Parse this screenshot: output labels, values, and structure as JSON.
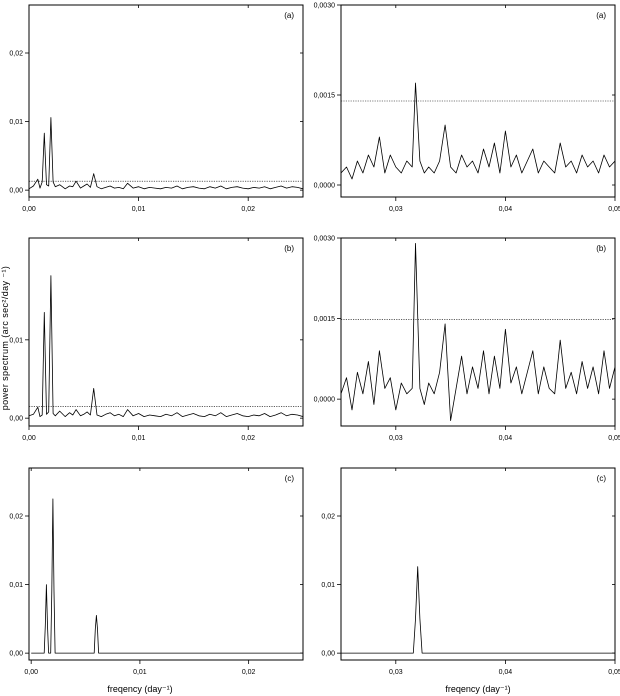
{
  "figure": {
    "ylabel": "power spectrum (arc sec²/day ⁻¹)",
    "xlabel": "freqency (day⁻¹)"
  },
  "chart_data": [
    {
      "type": "line",
      "panel": "(a)",
      "xlim": [
        0,
        0.025
      ],
      "ylim": [
        -0.001,
        0.027
      ],
      "xticks": [
        0.0,
        0.01,
        0.02
      ],
      "xticklabels": [
        "0,00",
        "0,01",
        "0,02"
      ],
      "yticks": [
        0.0,
        0.01,
        0.02
      ],
      "yticklabels": [
        "0,00",
        "0,01",
        "0,02"
      ],
      "threshold": 0.0013,
      "series": [
        {
          "x": [
            0.0,
            0.0004,
            0.0008,
            0.001,
            0.0012,
            0.0014,
            0.0016,
            0.0018,
            0.002,
            0.0022,
            0.0024,
            0.0028,
            0.0033,
            0.0037,
            0.004,
            0.0043,
            0.0047,
            0.005,
            0.0053,
            0.0056,
            0.0059,
            0.0062,
            0.0066,
            0.007,
            0.0074,
            0.0078,
            0.0082,
            0.0086,
            0.009,
            0.0095,
            0.01,
            0.0105,
            0.011,
            0.0115,
            0.012,
            0.0125,
            0.013,
            0.0135,
            0.014,
            0.0145,
            0.015,
            0.0155,
            0.016,
            0.0165,
            0.017,
            0.0175,
            0.018,
            0.0185,
            0.019,
            0.0195,
            0.02,
            0.0205,
            0.021,
            0.0215,
            0.022,
            0.0225,
            0.023,
            0.0235,
            0.024,
            0.0245,
            0.025
          ],
          "y": [
            0.0002,
            0.0006,
            0.0016,
            0.0003,
            0.0012,
            0.0083,
            0.0008,
            0.0006,
            0.0106,
            0.0012,
            0.0005,
            0.0008,
            0.0002,
            0.0006,
            0.0005,
            0.0013,
            0.0003,
            0.0006,
            0.0009,
            0.0004,
            0.0024,
            0.0005,
            0.0002,
            0.0004,
            0.0006,
            0.0003,
            0.0004,
            0.0002,
            0.001,
            0.0003,
            0.0005,
            0.0002,
            0.0004,
            0.0003,
            0.0002,
            0.0004,
            0.0003,
            0.0006,
            0.0002,
            0.0004,
            0.0005,
            0.0003,
            0.0002,
            0.0005,
            0.0003,
            0.0006,
            0.0002,
            0.0004,
            0.0005,
            0.0003,
            0.0002,
            0.0004,
            0.0003,
            0.0005,
            0.0002,
            0.0004,
            0.0006,
            0.0003,
            0.0005,
            0.0004,
            0.0002
          ]
        }
      ]
    },
    {
      "type": "line",
      "panel": "(a)",
      "xlim": [
        0.025,
        0.05
      ],
      "ylim": [
        -0.0002,
        0.003
      ],
      "xticks": [
        0.03,
        0.04,
        0.05
      ],
      "xticklabels": [
        "0,03",
        "0,04",
        "0,05"
      ],
      "yticks": [
        0.0,
        0.0015,
        0.003
      ],
      "yticklabels": [
        "0,0000",
        "0,0015",
        "0,0030"
      ],
      "threshold": 0.0014,
      "series": [
        {
          "x": [
            0.025,
            0.0255,
            0.026,
            0.0265,
            0.027,
            0.0275,
            0.028,
            0.0285,
            0.029,
            0.0295,
            0.03,
            0.0305,
            0.031,
            0.0315,
            0.0318,
            0.0322,
            0.0326,
            0.033,
            0.0335,
            0.034,
            0.0345,
            0.035,
            0.0355,
            0.036,
            0.0365,
            0.037,
            0.0375,
            0.038,
            0.0385,
            0.039,
            0.0395,
            0.04,
            0.0405,
            0.041,
            0.0415,
            0.042,
            0.0425,
            0.043,
            0.0435,
            0.044,
            0.0445,
            0.045,
            0.0455,
            0.046,
            0.0465,
            0.047,
            0.0475,
            0.048,
            0.0485,
            0.049,
            0.0495,
            0.05
          ],
          "y": [
            0.0002,
            0.0003,
            0.0001,
            0.0004,
            0.0002,
            0.0005,
            0.0003,
            0.0008,
            0.0002,
            0.0005,
            0.0003,
            0.0002,
            0.0004,
            0.0003,
            0.0017,
            0.0004,
            0.0002,
            0.0003,
            0.0002,
            0.0004,
            0.001,
            0.0003,
            0.0002,
            0.0005,
            0.0003,
            0.0004,
            0.0002,
            0.0006,
            0.0003,
            0.0007,
            0.0002,
            0.0009,
            0.0003,
            0.0005,
            0.0002,
            0.0004,
            0.0006,
            0.0002,
            0.0004,
            0.0003,
            0.0002,
            0.0007,
            0.0003,
            0.0004,
            0.0002,
            0.0005,
            0.0003,
            0.0004,
            0.0002,
            0.0005,
            0.0003,
            0.0004
          ]
        }
      ]
    },
    {
      "type": "line",
      "panel": "(b)",
      "xlim": [
        0,
        0.025
      ],
      "ylim": [
        -0.001,
        0.023
      ],
      "xticks": [
        0.0,
        0.01,
        0.02
      ],
      "xticklabels": [
        "0,00",
        "0,01",
        "0,02"
      ],
      "yticks": [
        0.0,
        0.01
      ],
      "yticklabels": [
        "0,00",
        "0,01"
      ],
      "threshold": 0.0015,
      "series": [
        {
          "x": [
            0.0,
            0.0004,
            0.0008,
            0.001,
            0.0012,
            0.0014,
            0.0016,
            0.0018,
            0.002,
            0.0022,
            0.0024,
            0.0028,
            0.0033,
            0.0037,
            0.004,
            0.0043,
            0.0047,
            0.005,
            0.0053,
            0.0056,
            0.0059,
            0.0062,
            0.0066,
            0.007,
            0.0074,
            0.0078,
            0.0082,
            0.0086,
            0.009,
            0.0095,
            0.01,
            0.0105,
            0.011,
            0.0115,
            0.012,
            0.0125,
            0.013,
            0.0135,
            0.014,
            0.0145,
            0.015,
            0.0155,
            0.016,
            0.0165,
            0.017,
            0.0175,
            0.018,
            0.0185,
            0.019,
            0.0195,
            0.02,
            0.0205,
            0.021,
            0.0215,
            0.022,
            0.0225,
            0.023,
            0.0235,
            0.024,
            0.0245,
            0.025
          ],
          "y": [
            0.0003,
            0.0005,
            0.0014,
            0.0002,
            0.0004,
            0.0135,
            0.0005,
            0.0008,
            0.0182,
            0.0006,
            0.0003,
            0.0009,
            0.0002,
            0.0007,
            0.0004,
            0.0011,
            0.0003,
            0.0005,
            0.0008,
            0.0004,
            0.0038,
            0.0004,
            0.0002,
            0.0005,
            0.0007,
            0.0003,
            0.0005,
            0.0002,
            0.0011,
            0.0003,
            0.0006,
            0.0002,
            0.0004,
            0.0003,
            0.0002,
            0.0005,
            0.0003,
            0.0007,
            0.0002,
            0.0004,
            0.0006,
            0.0003,
            0.0002,
            0.0005,
            0.0003,
            0.0007,
            0.0002,
            0.0004,
            0.0006,
            0.0003,
            0.0002,
            0.0004,
            0.0003,
            0.0006,
            0.0002,
            0.0004,
            0.0007,
            0.0003,
            0.0005,
            0.0004,
            0.0002
          ]
        }
      ]
    },
    {
      "type": "line",
      "panel": "(b)",
      "xlim": [
        0.025,
        0.05
      ],
      "ylim": [
        -0.0005,
        0.003
      ],
      "xticks": [
        0.03,
        0.04,
        0.05
      ],
      "xticklabels": [
        "0,03",
        "0,04",
        "0,05"
      ],
      "yticks": [
        0.0,
        0.0015,
        0.003
      ],
      "yticklabels": [
        "0,0000",
        "0,0015",
        "0,0030"
      ],
      "threshold": 0.00148,
      "series": [
        {
          "x": [
            0.025,
            0.0255,
            0.026,
            0.0265,
            0.027,
            0.0275,
            0.028,
            0.0285,
            0.029,
            0.0295,
            0.03,
            0.0305,
            0.031,
            0.0315,
            0.0318,
            0.0322,
            0.0326,
            0.033,
            0.0335,
            0.034,
            0.0345,
            0.035,
            0.0355,
            0.036,
            0.0365,
            0.037,
            0.0375,
            0.038,
            0.0385,
            0.039,
            0.0395,
            0.04,
            0.0405,
            0.041,
            0.0415,
            0.042,
            0.0425,
            0.043,
            0.0435,
            0.044,
            0.0445,
            0.045,
            0.0455,
            0.046,
            0.0465,
            0.047,
            0.0475,
            0.048,
            0.0485,
            0.049,
            0.0495,
            0.05
          ],
          "y": [
            0.0001,
            0.0004,
            -0.0002,
            0.0005,
            0.0001,
            0.0007,
            -0.0001,
            0.0009,
            0.0002,
            0.0004,
            -0.0002,
            0.0003,
            0.0001,
            0.0002,
            0.0029,
            0.0002,
            -0.0001,
            0.0003,
            0.0001,
            0.0005,
            0.0014,
            -0.0004,
            0.0002,
            0.0008,
            0.0001,
            0.0006,
            0.0002,
            0.0009,
            0.0001,
            0.0008,
            0.0002,
            0.0013,
            0.0003,
            0.0006,
            0.0001,
            0.0005,
            0.0009,
            0.0001,
            0.0006,
            0.0002,
            0.0001,
            0.0011,
            0.0002,
            0.0005,
            0.0001,
            0.0007,
            0.0002,
            0.0006,
            0.0001,
            0.0009,
            0.0002,
            0.0006
          ]
        }
      ]
    },
    {
      "type": "line",
      "panel": "(c)",
      "xlim": [
        -0.0002,
        0.025
      ],
      "ylim": [
        -0.001,
        0.027
      ],
      "xticks": [
        0.0,
        0.01,
        0.02
      ],
      "xticklabels": [
        "0,00",
        "0,01",
        "0,02"
      ],
      "yticks": [
        0.0,
        0.01,
        0.02
      ],
      "yticklabels": [
        "0,00",
        "0,01",
        "0,02"
      ],
      "series": [
        {
          "x": [
            0.0,
            0.0012,
            0.0013,
            0.0014,
            0.0015,
            0.0016,
            0.0018,
            0.0019,
            0.002,
            0.0021,
            0.0022,
            0.0024,
            0.0058,
            0.0059,
            0.006,
            0.0061,
            0.0062,
            0.025
          ],
          "y": [
            0.0,
            0.0,
            0.004,
            0.01,
            0.004,
            0.0,
            0.0,
            0.009,
            0.0225,
            0.009,
            0.0,
            0.0,
            0.0,
            0.0035,
            0.0055,
            0.0035,
            0.0,
            0.0
          ]
        }
      ]
    },
    {
      "type": "line",
      "panel": "(c)",
      "xlim": [
        0.025,
        0.05
      ],
      "ylim": [
        -0.001,
        0.027
      ],
      "xticks": [
        0.03,
        0.04,
        0.05
      ],
      "xticklabels": [
        "0,03",
        "0,04",
        "0,05"
      ],
      "yticks": [
        0.0,
        0.01,
        0.02
      ],
      "yticklabels": [
        "0,00",
        "0,01",
        "0,02"
      ],
      "series": [
        {
          "x": [
            0.025,
            0.0316,
            0.0318,
            0.032,
            0.0322,
            0.0324,
            0.05
          ],
          "y": [
            0.0,
            0.0,
            0.005,
            0.0126,
            0.005,
            0.0,
            0.0
          ]
        }
      ]
    }
  ]
}
